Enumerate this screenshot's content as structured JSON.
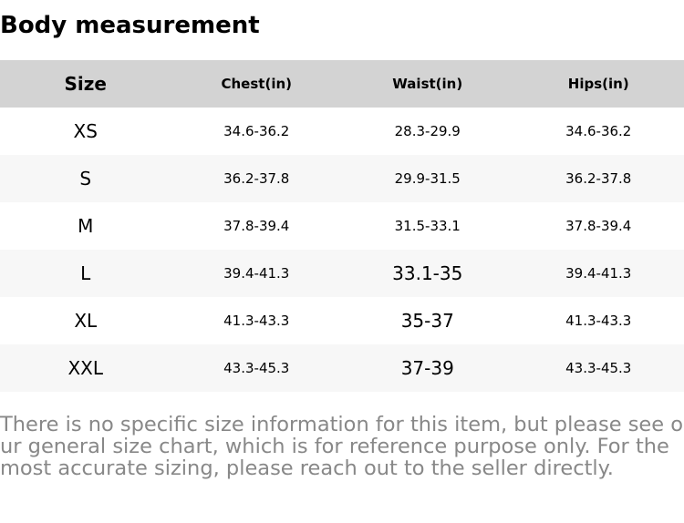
{
  "title": "Body measurement",
  "headers": [
    "Size",
    "Chest(in)",
    "Waist(in)",
    "Hips(in)"
  ],
  "rows": [
    [
      "XS",
      "34.6-36.2",
      "28.3-29.9",
      "34.6-36.2"
    ],
    [
      "S",
      "36.2-37.8",
      "29.9-31.5",
      "36.2-37.8"
    ],
    [
      "M",
      "37.8-39.4",
      "31.5-33.1",
      "37.8-39.4"
    ],
    [
      "L",
      "39.4-41.3",
      "33.1-35",
      "39.4-41.3"
    ],
    [
      "XL",
      "41.3-43.3",
      "35-37",
      "41.3-43.3"
    ],
    [
      "XXL",
      "43.3-45.3",
      "37-39",
      "43.3-45.3"
    ]
  ],
  "note": "There is no specific size information for this item, but please see our general size chart, which is for reference purpose only. For the most accurate sizing, please reach out to the seller directly."
}
